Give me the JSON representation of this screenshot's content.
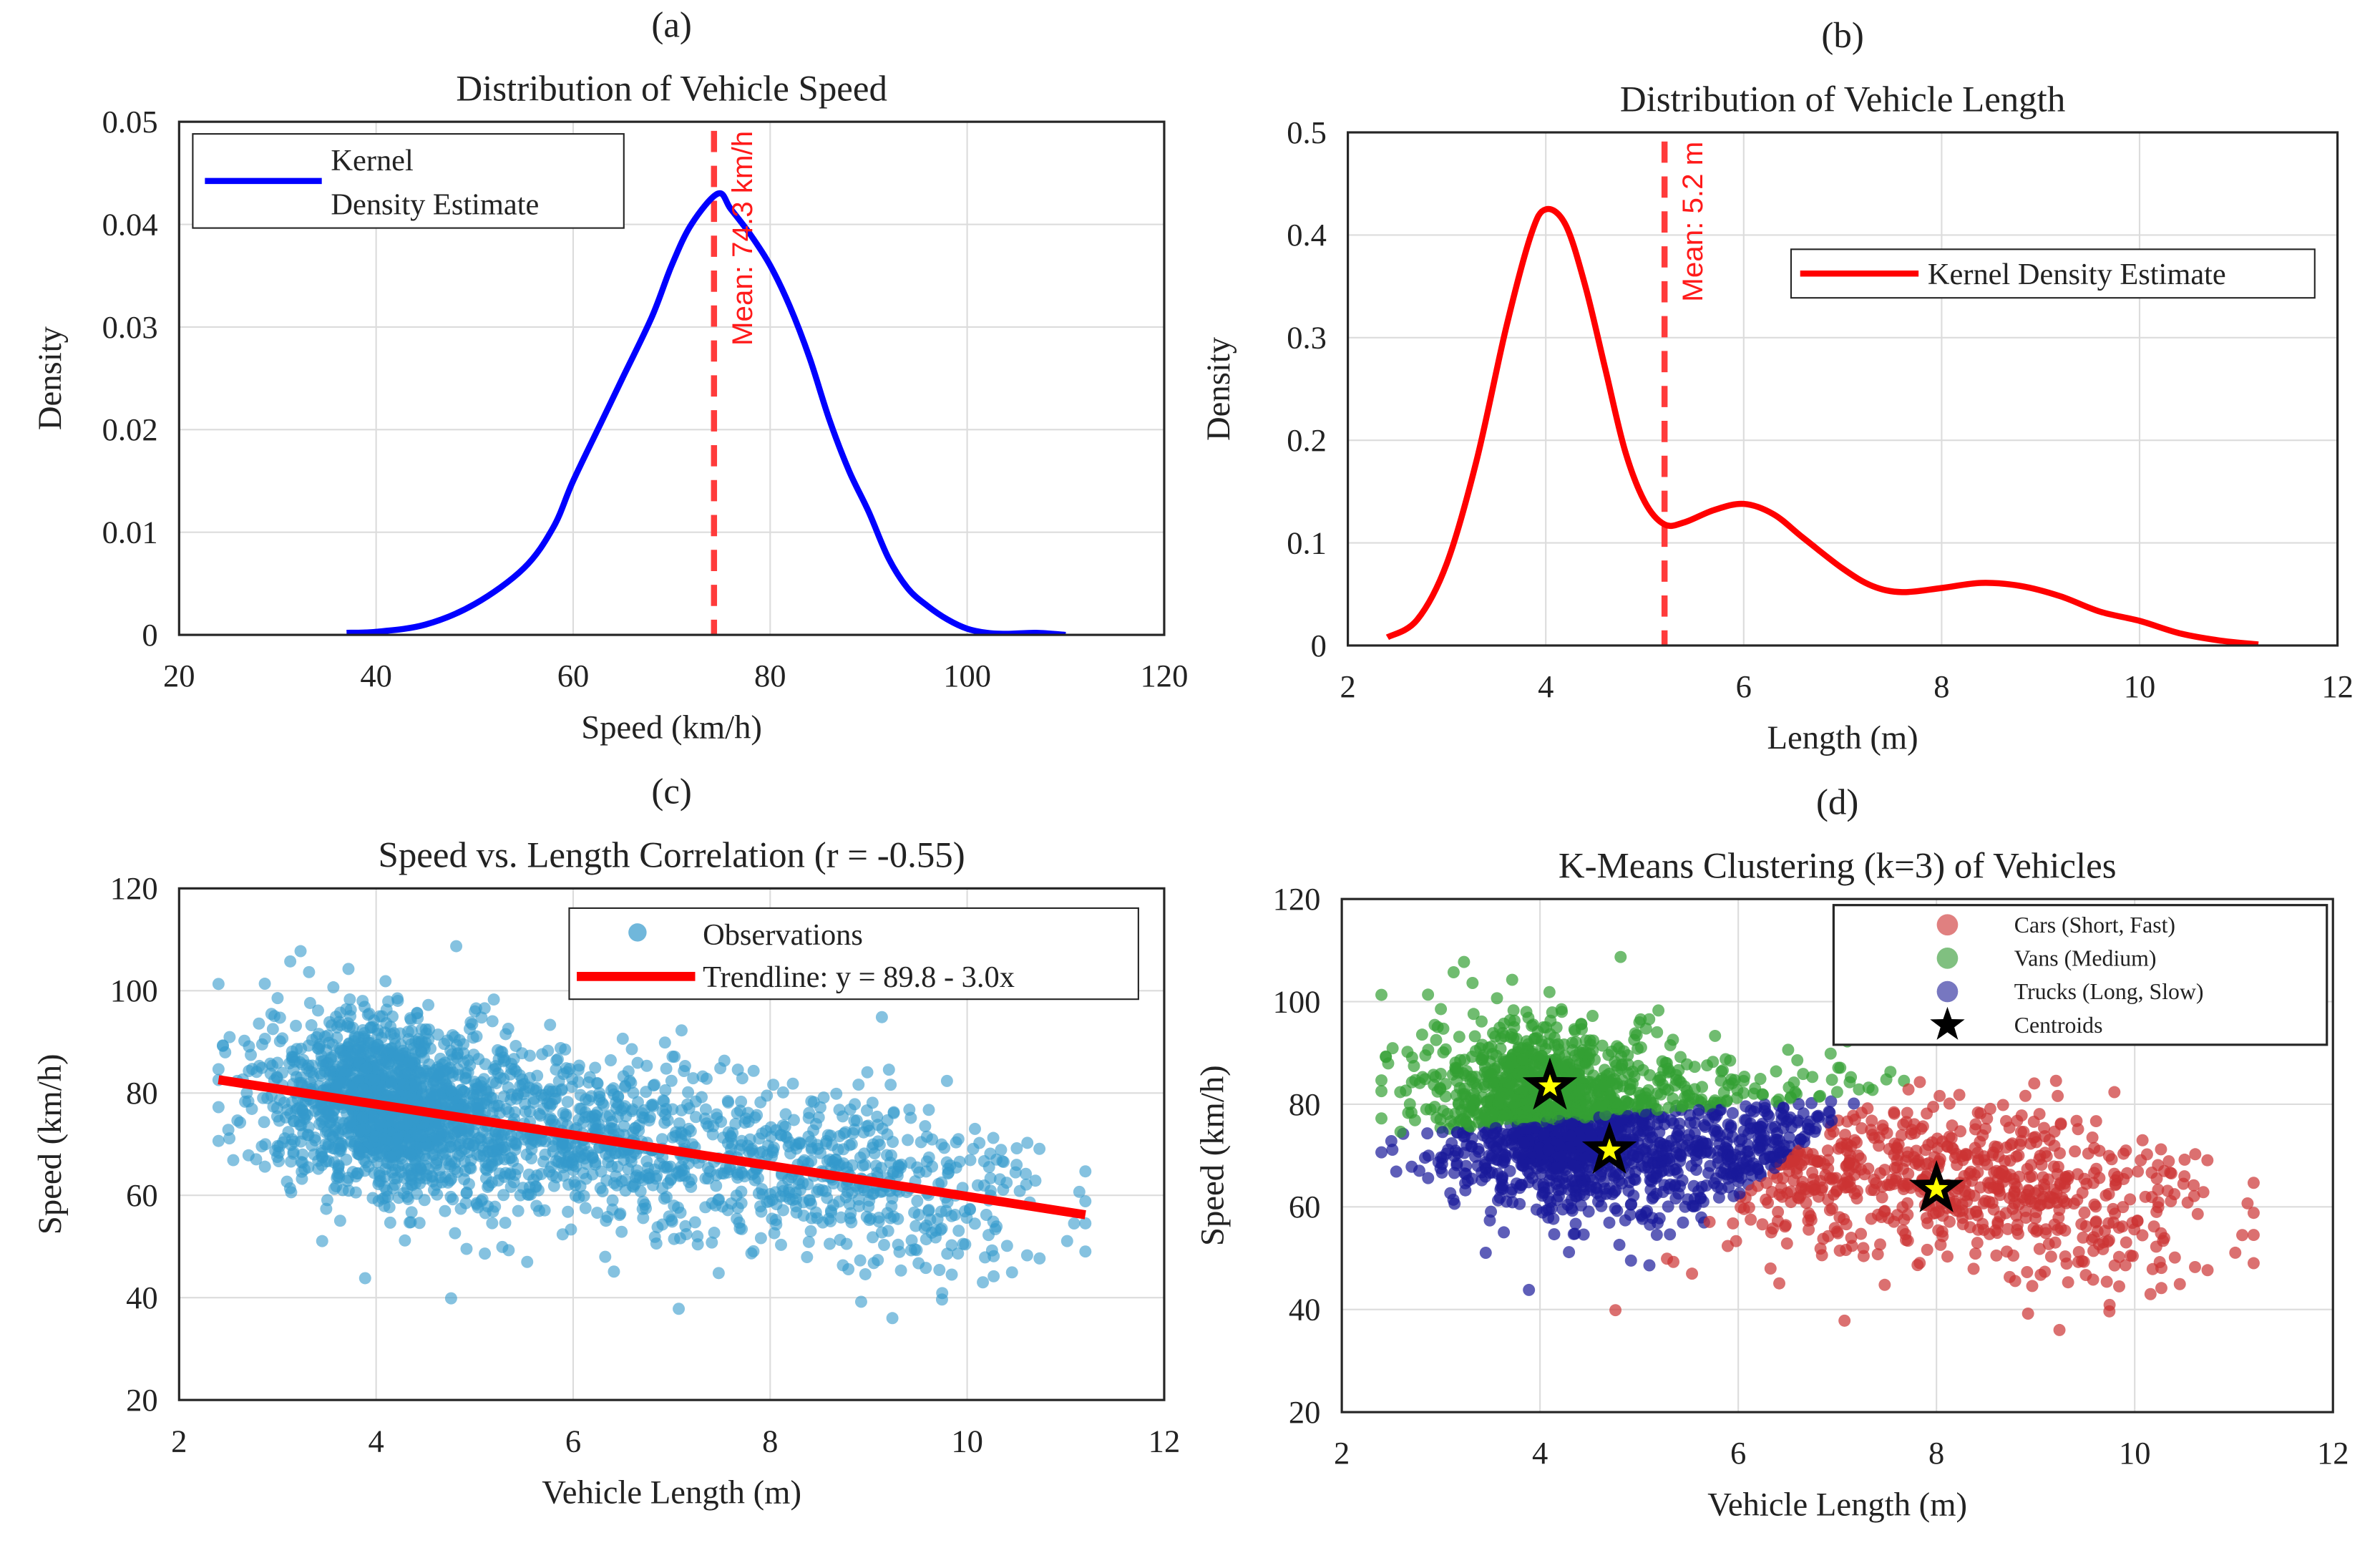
{
  "chart_data": [
    {
      "type": "line",
      "panel": "(a)",
      "title": "Distribution of Vehicle Speed",
      "xlabel": "Speed (km/h)",
      "ylabel": "Density",
      "xlim": [
        20,
        120
      ],
      "ylim": [
        0,
        0.05
      ],
      "xticks": [
        "20",
        "40",
        "60",
        "80",
        "100",
        "120"
      ],
      "yticks": [
        "0",
        "0.01",
        "0.02",
        "0.03",
        "0.04",
        "0.05"
      ],
      "grid": true,
      "legend": {
        "placement": "top-left",
        "entries": [
          "Kernel",
          "Density Estimate"
        ]
      },
      "series": [
        {
          "name": "Kernel Density Estimate",
          "color": "#0000ff",
          "x": [
            37,
            40,
            45,
            50,
            55,
            58,
            60,
            63,
            65,
            68,
            70,
            72,
            74.7,
            76,
            78,
            80,
            82,
            84,
            86,
            88,
            90,
            92,
            94,
            96,
            98,
            100,
            102,
            104,
            107,
            110
          ],
          "y": [
            0.0002,
            0.0003,
            0.001,
            0.003,
            0.0065,
            0.0105,
            0.015,
            0.021,
            0.025,
            0.031,
            0.036,
            0.04,
            0.043,
            0.0415,
            0.039,
            0.036,
            0.032,
            0.027,
            0.021,
            0.016,
            0.012,
            0.0075,
            0.0045,
            0.0028,
            0.0015,
            0.0006,
            0.0002,
            0.0001,
            0.0002,
            0.0
          ]
        }
      ],
      "mean_line": {
        "value": 74.3,
        "label": "Mean: 74.3 km/h",
        "color": "#ff3b3b"
      }
    },
    {
      "type": "line",
      "panel": "(b)",
      "title": "Distribution of Vehicle Length",
      "xlabel": "Length (m)",
      "ylabel": "Density",
      "xlim": [
        2,
        12
      ],
      "ylim": [
        0,
        0.5
      ],
      "xticks": [
        "2",
        "4",
        "6",
        "8",
        "10",
        "12"
      ],
      "yticks": [
        "0",
        "0.1",
        "0.2",
        "0.3",
        "0.4",
        "0.5"
      ],
      "grid": true,
      "legend": {
        "placement": "top-right",
        "entries": [
          "Kernel Density Estimate"
        ]
      },
      "series": [
        {
          "name": "Kernel Density Estimate",
          "color": "#ff0000",
          "x": [
            2.4,
            2.7,
            3.0,
            3.3,
            3.6,
            3.85,
            4.0,
            4.2,
            4.4,
            4.6,
            4.8,
            5.0,
            5.2,
            5.4,
            5.7,
            6.0,
            6.3,
            6.6,
            7.0,
            7.3,
            7.6,
            8.0,
            8.4,
            8.8,
            9.2,
            9.6,
            10.0,
            10.4,
            10.8,
            11.2
          ],
          "y": [
            0.008,
            0.025,
            0.08,
            0.18,
            0.31,
            0.4,
            0.425,
            0.41,
            0.35,
            0.27,
            0.19,
            0.14,
            0.118,
            0.12,
            0.132,
            0.138,
            0.128,
            0.105,
            0.075,
            0.058,
            0.052,
            0.056,
            0.061,
            0.058,
            0.048,
            0.033,
            0.024,
            0.012,
            0.005,
            0.001
          ]
        }
      ],
      "mean_line": {
        "value": 5.2,
        "label": "Mean: 5.2 m",
        "color": "#ff3b3b"
      }
    },
    {
      "type": "scatter",
      "panel": "(c)",
      "title": "Speed vs. Length Correlation (r = -0.55)",
      "xlabel": "Vehicle Length (m)",
      "ylabel": "Speed (km/h)",
      "xlim": [
        2,
        12
      ],
      "ylim": [
        20,
        120
      ],
      "xticks": [
        "2",
        "4",
        "6",
        "8",
        "10",
        "12"
      ],
      "yticks": [
        "20",
        "40",
        "60",
        "80",
        "100",
        "120"
      ],
      "grid": true,
      "legend": {
        "placement": "top-right",
        "entries": [
          "Observations",
          "Trendline: y = 89.8 - 3.0x"
        ]
      },
      "observations_color": "#3399cc",
      "trendline": {
        "intercept": 89.8,
        "slope": -3.0,
        "x_range": [
          2.4,
          11.2
        ],
        "color": "#ff0000"
      },
      "correlation": -0.55
    },
    {
      "type": "scatter",
      "panel": "(d)",
      "title": "K-Means Clustering (k=3) of Vehicles",
      "xlabel": "Vehicle Length (m)",
      "ylabel": "Speed (km/h)",
      "xlim": [
        2,
        12
      ],
      "ylim": [
        20,
        120
      ],
      "xticks": [
        "2",
        "4",
        "6",
        "8",
        "10",
        "12"
      ],
      "yticks": [
        "20",
        "40",
        "60",
        "80",
        "100",
        "120"
      ],
      "grid": true,
      "legend": {
        "placement": "top-right",
        "entries": [
          "Cars (Short, Fast)",
          "Vans (Medium)",
          "Trucks (Long, Slow)",
          "Centroids"
        ]
      },
      "clusters": [
        {
          "name": "Cars (Short, Fast)",
          "color": "#cc3333",
          "legend_color": "#e08080",
          "centroid": [
            8.0,
            63.5
          ]
        },
        {
          "name": "Vans (Medium)",
          "color": "#33a033",
          "legend_color": "#80c080",
          "centroid": [
            4.1,
            83.5
          ]
        },
        {
          "name": "Trucks (Long, Slow)",
          "color": "#1a1a9a",
          "legend_color": "#7777c0",
          "centroid": [
            4.7,
            71.0
          ]
        }
      ],
      "centroid_marker": {
        "fill": "#ffff00",
        "edge": "#000000",
        "shape": "star"
      }
    }
  ]
}
